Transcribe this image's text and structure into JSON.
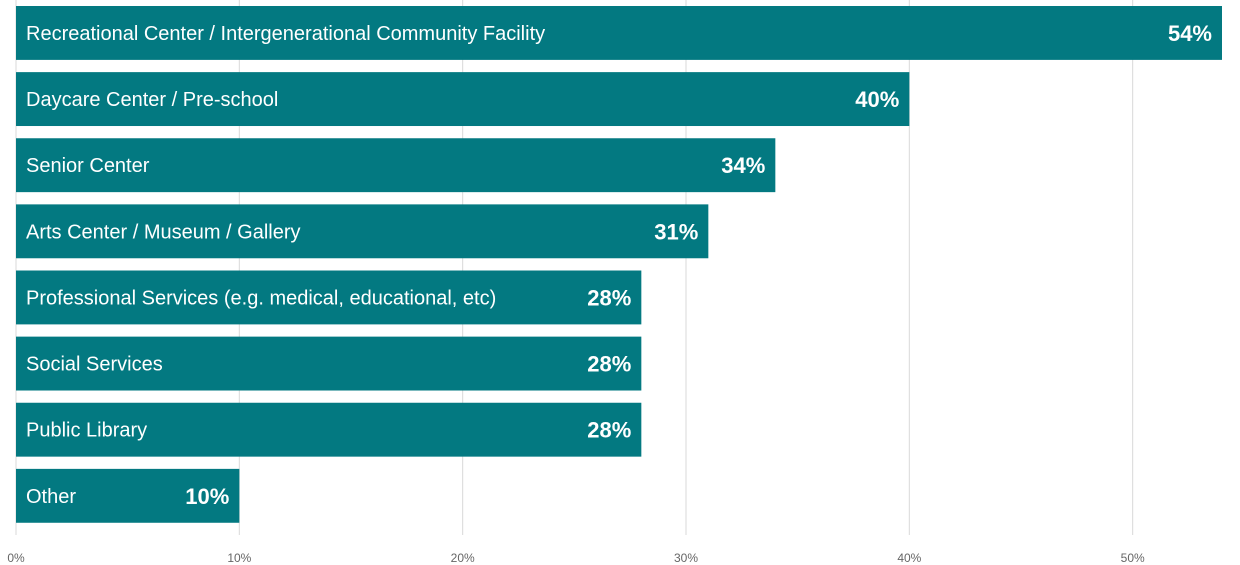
{
  "chart_data": {
    "type": "bar",
    "orientation": "horizontal",
    "categories": [
      "Recreational Center / Intergenerational Community Facility",
      "Daycare Center / Pre-school",
      "Senior Center",
      "Arts Center / Museum / Gallery",
      "Professional Services (e.g. medical, educational, etc)",
      "Social Services",
      "Public Library",
      "Other"
    ],
    "values": [
      54,
      40,
      34,
      31,
      28,
      28,
      28,
      10
    ],
    "value_labels": [
      "54%",
      "40%",
      "34%",
      "31%",
      "28%",
      "28%",
      "28%",
      "10%"
    ],
    "xlim": [
      0,
      54
    ],
    "x_ticks": [
      0,
      10,
      20,
      30,
      40,
      50
    ],
    "x_tick_labels": [
      "0%",
      "10%",
      "20%",
      "30%",
      "40%",
      "50%"
    ],
    "grid": true,
    "colors": {
      "bar": "#037981",
      "grid": "#d9d9d9",
      "tick_text": "#666666",
      "bar_text": "#ffffff"
    }
  }
}
